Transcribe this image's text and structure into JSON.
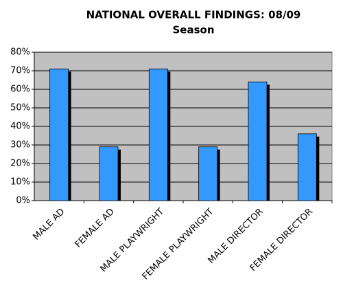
{
  "chart_data": {
    "type": "bar",
    "title": [
      "NATIONAL OVERALL FINDINGS: 08/09",
      "Season"
    ],
    "categories": [
      "MALE AD",
      "FEMALE AD",
      "MALE PLAYWRIGHT",
      "FEMALE PLAYWRIGHT",
      "MALE DIRECTOR",
      "FEMALE DIRECTOR"
    ],
    "values": [
      71,
      29,
      71,
      29,
      64,
      36
    ],
    "color": "#3399ff",
    "ylim": [
      0,
      80
    ],
    "yticks": [
      {
        "value": 0,
        "label": "0%"
      },
      {
        "value": 10,
        "label": "10%"
      },
      {
        "value": 20,
        "label": "20%"
      },
      {
        "value": 30,
        "label": "30%"
      },
      {
        "value": 40,
        "label": "40%"
      },
      {
        "value": 50,
        "label": "50%"
      },
      {
        "value": 60,
        "label": "60%"
      },
      {
        "value": 70,
        "label": "70%"
      },
      {
        "value": 80,
        "label": "80%"
      }
    ],
    "grid": true
  }
}
